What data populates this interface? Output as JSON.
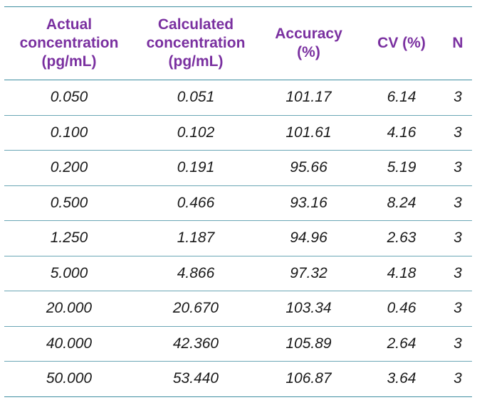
{
  "table": {
    "headers": [
      "Actual concentration (pg/mL)",
      "Calculated concentration (pg/mL)",
      "Accuracy (%)",
      "CV (%)",
      "N"
    ],
    "header_lines": [
      [
        "Actual",
        "concentration",
        "(pg/mL)"
      ],
      [
        "Calculated",
        "concentration",
        "(pg/mL)"
      ],
      [
        "Accuracy",
        "(%)"
      ],
      [
        "CV (%)"
      ],
      [
        "N"
      ]
    ],
    "rows": [
      [
        "0.050",
        "0.051",
        "101.17",
        "6.14",
        "3"
      ],
      [
        "0.100",
        "0.102",
        "101.61",
        "4.16",
        "3"
      ],
      [
        "0.200",
        "0.191",
        "95.66",
        "5.19",
        "3"
      ],
      [
        "0.500",
        "0.466",
        "93.16",
        "8.24",
        "3"
      ],
      [
        "1.250",
        "1.187",
        "94.96",
        "2.63",
        "3"
      ],
      [
        "5.000",
        "4.866",
        "97.32",
        "4.18",
        "3"
      ],
      [
        "20.000",
        "20.670",
        "103.34",
        "0.46",
        "3"
      ],
      [
        "40.000",
        "42.360",
        "105.89",
        "2.64",
        "3"
      ],
      [
        "50.000",
        "53.440",
        "106.87",
        "3.64",
        "3"
      ]
    ]
  },
  "colors": {
    "header_text": "#7a30a0",
    "rule": "#3e8ea0",
    "body_text": "#1a1a1a"
  }
}
